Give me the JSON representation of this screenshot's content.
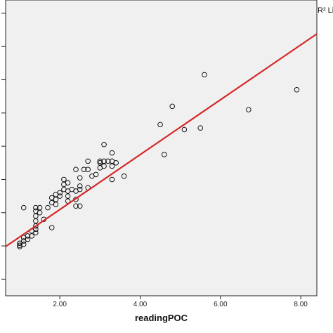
{
  "chart_data": {
    "type": "scatter",
    "title": "",
    "xlabel": "readingPOC",
    "ylabel": "",
    "xlim": [
      0.65,
      8.4
    ],
    "ylim": [
      0.5,
      9.4
    ],
    "x_ticks": [
      2.0,
      4.0,
      6.0,
      8.0
    ],
    "x_tick_labels": [
      "2.00",
      "4.00",
      "6.00",
      "8.00"
    ],
    "y_ticks": [
      1.0,
      2.0,
      3.0,
      4.0,
      5.0,
      6.0,
      7.0,
      8.0,
      9.0
    ],
    "grid": false,
    "legend": {
      "placement": "top-right",
      "text": "R² Li"
    },
    "fit_line": {
      "color": "#d62728",
      "x": [
        0.65,
        8.4
      ],
      "y": [
        1.98,
        8.38
      ]
    },
    "colors": {
      "plot_background": "#f0f0f0",
      "marker_stroke": "#000000",
      "fit_line": "#d62728"
    },
    "points": [
      {
        "x": 1.0,
        "y": 1.98
      },
      {
        "x": 1.0,
        "y": 2.02
      },
      {
        "x": 1.0,
        "y": 2.08
      },
      {
        "x": 1.1,
        "y": 2.05
      },
      {
        "x": 1.1,
        "y": 2.15
      },
      {
        "x": 1.1,
        "y": 2.25
      },
      {
        "x": 1.1,
        "y": 3.15
      },
      {
        "x": 1.2,
        "y": 2.2
      },
      {
        "x": 1.2,
        "y": 2.3
      },
      {
        "x": 1.3,
        "y": 2.3
      },
      {
        "x": 1.3,
        "y": 2.45
      },
      {
        "x": 1.4,
        "y": 2.4
      },
      {
        "x": 1.4,
        "y": 2.5
      },
      {
        "x": 1.4,
        "y": 2.6
      },
      {
        "x": 1.4,
        "y": 2.75
      },
      {
        "x": 1.4,
        "y": 2.9
      },
      {
        "x": 1.4,
        "y": 3.05
      },
      {
        "x": 1.4,
        "y": 3.15
      },
      {
        "x": 1.5,
        "y": 3.0
      },
      {
        "x": 1.5,
        "y": 3.15
      },
      {
        "x": 1.6,
        "y": 2.8
      },
      {
        "x": 1.7,
        "y": 3.15
      },
      {
        "x": 1.8,
        "y": 3.3
      },
      {
        "x": 1.8,
        "y": 3.45
      },
      {
        "x": 1.8,
        "y": 2.55
      },
      {
        "x": 1.9,
        "y": 3.25
      },
      {
        "x": 1.9,
        "y": 3.4
      },
      {
        "x": 1.9,
        "y": 3.55
      },
      {
        "x": 2.0,
        "y": 3.5
      },
      {
        "x": 2.0,
        "y": 3.6
      },
      {
        "x": 2.1,
        "y": 3.7
      },
      {
        "x": 2.1,
        "y": 3.85
      },
      {
        "x": 2.1,
        "y": 4.0
      },
      {
        "x": 2.2,
        "y": 3.35
      },
      {
        "x": 2.2,
        "y": 3.5
      },
      {
        "x": 2.2,
        "y": 3.65
      },
      {
        "x": 2.2,
        "y": 3.9
      },
      {
        "x": 2.3,
        "y": 3.7
      },
      {
        "x": 2.4,
        "y": 3.2
      },
      {
        "x": 2.4,
        "y": 3.4
      },
      {
        "x": 2.4,
        "y": 3.65
      },
      {
        "x": 2.4,
        "y": 4.3
      },
      {
        "x": 2.5,
        "y": 3.2
      },
      {
        "x": 2.5,
        "y": 3.7
      },
      {
        "x": 2.5,
        "y": 3.8
      },
      {
        "x": 2.5,
        "y": 4.05
      },
      {
        "x": 2.6,
        "y": 4.3
      },
      {
        "x": 2.7,
        "y": 3.75
      },
      {
        "x": 2.7,
        "y": 4.3
      },
      {
        "x": 2.7,
        "y": 4.55
      },
      {
        "x": 2.8,
        "y": 4.1
      },
      {
        "x": 2.9,
        "y": 4.15
      },
      {
        "x": 3.0,
        "y": 4.35
      },
      {
        "x": 3.0,
        "y": 4.5
      },
      {
        "x": 3.0,
        "y": 4.55
      },
      {
        "x": 3.1,
        "y": 4.4
      },
      {
        "x": 3.1,
        "y": 4.55
      },
      {
        "x": 3.1,
        "y": 5.05
      },
      {
        "x": 3.2,
        "y": 4.55
      },
      {
        "x": 3.3,
        "y": 4.0
      },
      {
        "x": 3.3,
        "y": 4.4
      },
      {
        "x": 3.3,
        "y": 4.55
      },
      {
        "x": 3.3,
        "y": 4.8
      },
      {
        "x": 3.4,
        "y": 4.5
      },
      {
        "x": 3.6,
        "y": 4.1
      },
      {
        "x": 4.5,
        "y": 5.65
      },
      {
        "x": 4.6,
        "y": 4.75
      },
      {
        "x": 4.8,
        "y": 6.2
      },
      {
        "x": 5.1,
        "y": 5.5
      },
      {
        "x": 5.5,
        "y": 5.55
      },
      {
        "x": 5.6,
        "y": 7.15
      },
      {
        "x": 6.7,
        "y": 6.1
      },
      {
        "x": 7.9,
        "y": 6.7
      }
    ]
  }
}
